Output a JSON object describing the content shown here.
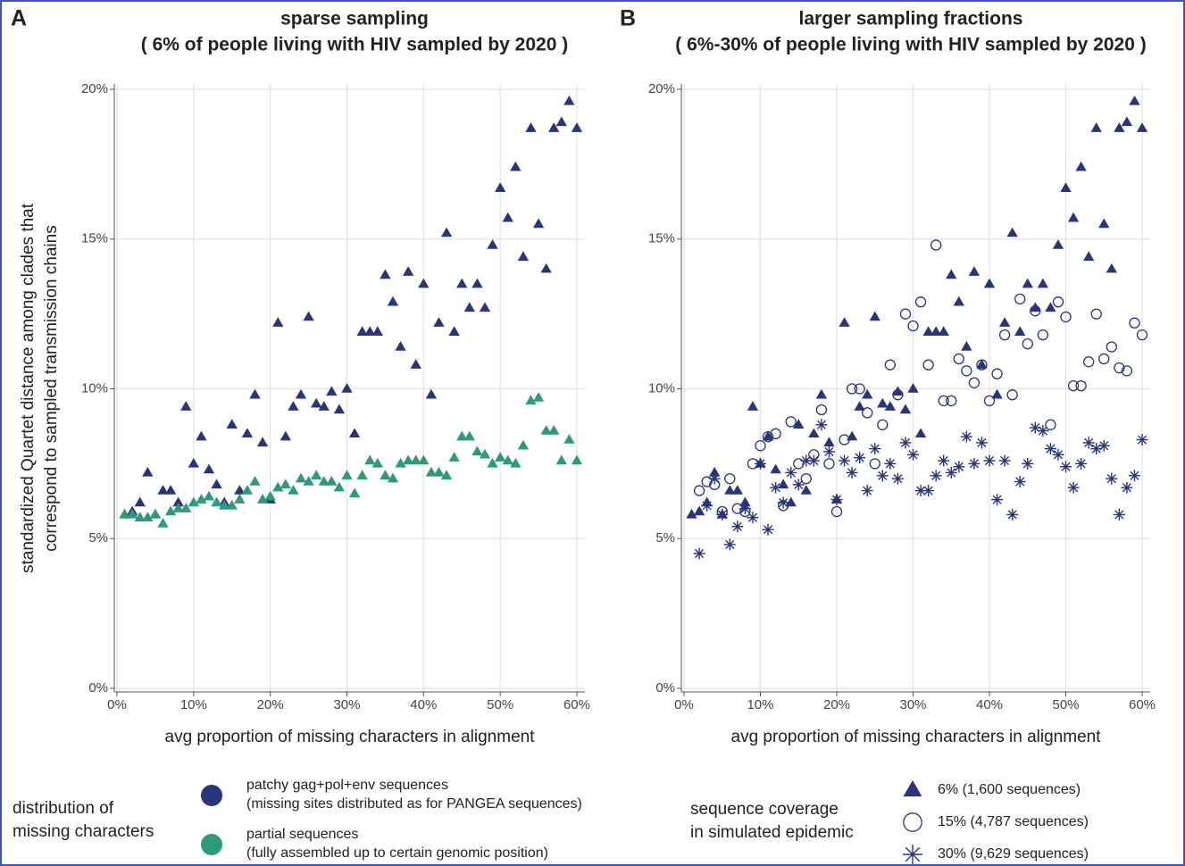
{
  "chart_data": [
    {
      "type": "scatter",
      "panel_label": "A",
      "title": "sparse sampling",
      "subtitle": "( 6% of people living with HIV sampled by 2020 )",
      "x_label": "avg proportion of missing characters in alignment",
      "y_label": [
        "standardized Quartet distance among clades that",
        "correspond to sampled transmission chains"
      ],
      "xlim": [
        -0.35,
        61.05
      ],
      "ylim": [
        -0.12,
        20.18
      ],
      "xticks": [
        {
          "value": 0,
          "label": "0%"
        },
        {
          "value": 10,
          "label": "10%"
        },
        {
          "value": 20,
          "label": "20%"
        },
        {
          "value": 30,
          "label": "30%"
        },
        {
          "value": 40,
          "label": "40%"
        },
        {
          "value": 50,
          "label": "50%"
        },
        {
          "value": 60,
          "label": "60%"
        }
      ],
      "yticks": [
        {
          "value": 0,
          "label": "0%"
        },
        {
          "value": 5,
          "label": "5%"
        },
        {
          "value": 10,
          "label": "10%"
        },
        {
          "value": 15,
          "label": "15%"
        },
        {
          "value": 20,
          "label": "20%"
        }
      ],
      "grid": true,
      "legend_title": [
        "distribution of",
        "missing characters"
      ],
      "legend_marker": "circle",
      "series": [
        {
          "name": "patchy gag+pol+env sequences",
          "description": "(missing sites distributed as for PANGEA sequences)",
          "color": "#28357a",
          "marker": "triangle",
          "x": [
            1,
            2,
            3,
            4,
            5,
            6,
            7,
            8,
            9,
            10,
            11,
            12,
            13,
            14,
            15,
            16,
            17,
            18,
            19,
            20,
            21,
            22,
            23,
            24,
            25,
            26,
            27,
            28,
            29,
            30,
            31,
            32,
            33,
            34,
            35,
            36,
            37,
            38,
            39,
            40,
            41,
            42,
            43,
            44,
            45,
            46,
            47,
            48,
            49,
            50,
            51,
            52,
            53,
            54,
            55,
            56,
            57,
            58,
            59,
            60
          ],
          "values": [
            5.8,
            5.9,
            6.2,
            7.2,
            5.8,
            6.6,
            6.6,
            6.2,
            9.4,
            7.5,
            8.4,
            7.3,
            6.8,
            6.2,
            8.8,
            6.6,
            8.5,
            9.8,
            8.2,
            6.3,
            12.2,
            8.4,
            9.4,
            9.8,
            12.4,
            9.5,
            9.4,
            9.9,
            9.3,
            10.0,
            8.5,
            11.9,
            11.9,
            11.9,
            13.8,
            12.9,
            11.4,
            13.9,
            10.8,
            13.5,
            9.8,
            12.2,
            15.2,
            11.9,
            13.5,
            12.7,
            13.5,
            12.7,
            14.8,
            16.7,
            15.7,
            17.4,
            14.4,
            18.7,
            15.5,
            14.0,
            18.7,
            18.9,
            19.6,
            18.7
          ]
        },
        {
          "name": "partial sequences",
          "description": "(fully assembled up to certain genomic position)",
          "color": "#2e9a7c",
          "marker": "triangle",
          "x": [
            1,
            2,
            3,
            4,
            5,
            6,
            7,
            8,
            9,
            10,
            11,
            12,
            13,
            14,
            15,
            16,
            17,
            18,
            19,
            20,
            21,
            22,
            23,
            24,
            25,
            26,
            27,
            28,
            29,
            30,
            31,
            32,
            33,
            34,
            35,
            36,
            37,
            38,
            39,
            40,
            41,
            42,
            43,
            44,
            45,
            46,
            47,
            48,
            49,
            50,
            51,
            52,
            53,
            54,
            55,
            56,
            57,
            58,
            59,
            60
          ],
          "values": [
            5.8,
            5.8,
            5.7,
            5.7,
            5.8,
            5.5,
            5.9,
            6.0,
            6.0,
            6.2,
            6.3,
            6.4,
            6.2,
            6.1,
            6.1,
            6.3,
            6.6,
            6.9,
            6.3,
            6.4,
            6.7,
            6.8,
            6.6,
            7.0,
            6.9,
            7.1,
            6.9,
            6.9,
            6.7,
            7.1,
            6.5,
            7.1,
            7.6,
            7.5,
            7.1,
            7.0,
            7.5,
            7.6,
            7.6,
            7.6,
            7.2,
            7.2,
            7.1,
            7.7,
            8.4,
            8.4,
            7.9,
            7.8,
            7.5,
            7.7,
            7.6,
            7.5,
            8.1,
            9.6,
            9.7,
            8.6,
            8.6,
            7.6,
            8.3,
            7.6
          ]
        }
      ]
    },
    {
      "type": "scatter",
      "panel_label": "B",
      "title": "larger sampling fractions",
      "subtitle": "( 6%-30% of people living with HIV sampled by 2020 )",
      "x_label": "avg proportion of missing characters in alignment",
      "xlim": [
        -0.35,
        61.05
      ],
      "ylim": [
        -0.12,
        20.18
      ],
      "xticks": [
        {
          "value": 0,
          "label": "0%"
        },
        {
          "value": 10,
          "label": "10%"
        },
        {
          "value": 20,
          "label": "20%"
        },
        {
          "value": 30,
          "label": "30%"
        },
        {
          "value": 40,
          "label": "40%"
        },
        {
          "value": 50,
          "label": "50%"
        },
        {
          "value": 60,
          "label": "60%"
        }
      ],
      "yticks": [
        {
          "value": 0,
          "label": "0%"
        },
        {
          "value": 5,
          "label": "5%"
        },
        {
          "value": 10,
          "label": "10%"
        },
        {
          "value": 15,
          "label": "15%"
        },
        {
          "value": 20,
          "label": "20%"
        }
      ],
      "grid": true,
      "legend_title": [
        "sequence coverage",
        "in simulated epidemic"
      ],
      "series": [
        {
          "name": "6% (1,600 sequences)",
          "color": "#28357a",
          "marker": "triangle",
          "x": [
            1,
            2,
            3,
            4,
            5,
            6,
            7,
            8,
            9,
            10,
            11,
            12,
            13,
            14,
            15,
            16,
            17,
            18,
            19,
            20,
            21,
            22,
            23,
            24,
            25,
            26,
            27,
            28,
            29,
            30,
            31,
            32,
            33,
            34,
            35,
            36,
            37,
            38,
            39,
            40,
            41,
            42,
            43,
            44,
            45,
            46,
            47,
            48,
            49,
            50,
            51,
            52,
            53,
            54,
            55,
            56,
            57,
            58,
            59,
            60
          ],
          "values": [
            5.8,
            5.9,
            6.2,
            7.2,
            5.8,
            6.6,
            6.6,
            6.2,
            9.4,
            7.5,
            8.4,
            7.3,
            6.8,
            6.2,
            8.8,
            6.6,
            8.5,
            9.8,
            8.2,
            6.3,
            12.2,
            8.4,
            9.4,
            9.8,
            12.4,
            9.5,
            9.4,
            9.9,
            9.3,
            10.0,
            8.5,
            11.9,
            11.9,
            11.9,
            13.8,
            12.9,
            11.4,
            13.9,
            10.8,
            13.5,
            9.8,
            12.2,
            15.2,
            11.9,
            13.5,
            12.7,
            13.5,
            12.7,
            14.8,
            16.7,
            15.7,
            17.4,
            14.4,
            18.7,
            15.5,
            14.0,
            18.7,
            18.9,
            19.6,
            18.7
          ]
        },
        {
          "name": "15% (4,787 sequences)",
          "color": "#28357a",
          "marker": "circle",
          "x": [
            2,
            3,
            4,
            5,
            6,
            7,
            8,
            9,
            10,
            11,
            12,
            13,
            14,
            15,
            16,
            17,
            18,
            19,
            20,
            21,
            22,
            23,
            24,
            25,
            26,
            27,
            28,
            29,
            30,
            31,
            32,
            33,
            34,
            35,
            36,
            37,
            38,
            39,
            40,
            41,
            42,
            43,
            44,
            45,
            46,
            47,
            48,
            49,
            50,
            51,
            52,
            53,
            54,
            55,
            56,
            57,
            58,
            59,
            60
          ],
          "values": [
            6.6,
            6.9,
            6.8,
            5.9,
            7.0,
            6.0,
            5.9,
            7.5,
            8.1,
            8.4,
            8.5,
            6.1,
            8.9,
            7.5,
            7.0,
            7.8,
            9.3,
            7.5,
            5.9,
            8.3,
            10.0,
            10.0,
            9.2,
            7.5,
            8.8,
            10.8,
            9.8,
            12.5,
            12.1,
            12.9,
            10.8,
            14.8,
            9.6,
            9.6,
            11.0,
            10.6,
            10.2,
            10.8,
            9.6,
            10.5,
            11.8,
            9.8,
            13.0,
            11.5,
            12.6,
            11.8,
            8.8,
            12.9,
            12.4,
            10.1,
            10.1,
            10.9,
            12.5,
            11.0,
            11.4,
            10.7,
            10.6,
            12.2,
            11.8
          ]
        },
        {
          "name": "30% (9,629 sequences)",
          "color": "#28357a",
          "marker": "star",
          "x": [
            2,
            3,
            4,
            5,
            6,
            7,
            8,
            9,
            10,
            11,
            12,
            13,
            14,
            15,
            16,
            17,
            18,
            19,
            20,
            21,
            22,
            23,
            24,
            25,
            26,
            27,
            28,
            29,
            30,
            31,
            32,
            33,
            34,
            35,
            36,
            37,
            38,
            39,
            40,
            41,
            42,
            43,
            44,
            45,
            46,
            47,
            48,
            49,
            50,
            51,
            52,
            53,
            54,
            55,
            56,
            57,
            58,
            59,
            60
          ],
          "values": [
            4.5,
            6.1,
            7.0,
            5.8,
            4.8,
            5.4,
            6.0,
            5.7,
            7.5,
            5.3,
            6.7,
            6.2,
            7.2,
            6.8,
            7.6,
            7.6,
            8.8,
            7.9,
            6.3,
            7.6,
            7.2,
            7.7,
            6.6,
            8.0,
            7.1,
            7.5,
            7.0,
            8.2,
            7.8,
            6.6,
            6.6,
            7.1,
            7.6,
            7.2,
            7.4,
            8.4,
            7.5,
            8.2,
            7.6,
            6.3,
            7.6,
            5.8,
            6.9,
            7.5,
            8.7,
            8.6,
            8.0,
            7.8,
            7.4,
            6.7,
            7.5,
            8.2,
            8.0,
            8.1,
            7.0,
            5.8,
            6.7,
            7.1,
            8.3
          ]
        }
      ]
    }
  ]
}
